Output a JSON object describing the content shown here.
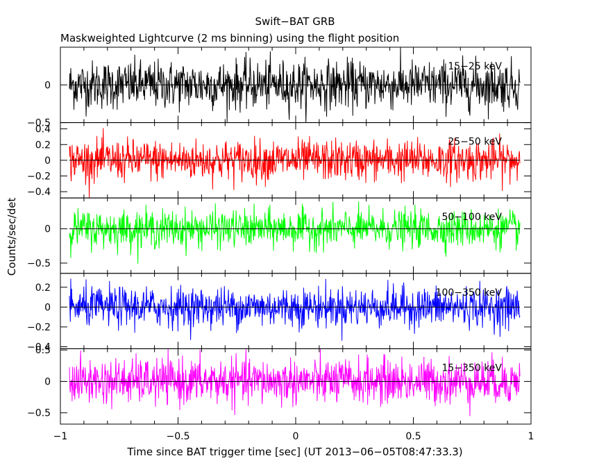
{
  "chart_data": {
    "type": "line",
    "title": "Swift−BAT GRB",
    "subtitle": "Maskweighted Lightcurve (2 ms binning) using the flight position",
    "xlabel": "Time since BAT trigger time [sec] (UT 2013−06−05T08:47:33.3)",
    "ylabel": "Counts/sec/det",
    "xlim": [
      -1.0,
      1.0
    ],
    "x_ticks": [
      -1,
      -0.5,
      0,
      0.5,
      1
    ],
    "x_tick_labels": [
      "−1",
      "−0.5",
      "0",
      "0.5",
      "1"
    ],
    "x_range": [
      -1.0,
      1.0
    ],
    "bin_width": 0.002,
    "panels": [
      {
        "label": "15−25 keV",
        "color": "#000000",
        "ylim": [
          -0.5,
          0.5
        ],
        "y_ticks": [
          0,
          -0.5
        ],
        "y_tick_labels": [
          "0",
          "−0.5"
        ],
        "amplitude": 0.32
      },
      {
        "label": "25−50 keV",
        "color": "#ff0000",
        "ylim": [
          -0.48,
          0.48
        ],
        "y_ticks": [
          0.4,
          0.2,
          0,
          -0.2,
          -0.4
        ],
        "y_tick_labels": [
          "0.4",
          "0.2",
          "0",
          "−0.2",
          "−0.4"
        ],
        "amplitude": 0.26
      },
      {
        "label": "50−100 keV",
        "color": "#00ff00",
        "ylim": [
          -0.65,
          0.45
        ],
        "y_ticks": [
          0,
          -0.5
        ],
        "y_tick_labels": [
          "0",
          "−0.5"
        ],
        "amplitude": 0.27
      },
      {
        "label": "100−350 keV",
        "color": "#0000ff",
        "ylim": [
          -0.42,
          0.34
        ],
        "y_ticks": [
          0.2,
          0,
          -0.2,
          -0.4
        ],
        "y_tick_labels": [
          "0.2",
          "0",
          "−0.2",
          "−0.4"
        ],
        "amplitude": 0.2
      },
      {
        "label": "15−350 keV",
        "color": "#ff00ff",
        "ylim": [
          -0.68,
          0.52
        ],
        "y_ticks": [
          0.5,
          0,
          -0.5
        ],
        "y_tick_labels": [
          "0.5",
          "0",
          "−0.5"
        ],
        "amplitude": 0.36
      }
    ]
  }
}
